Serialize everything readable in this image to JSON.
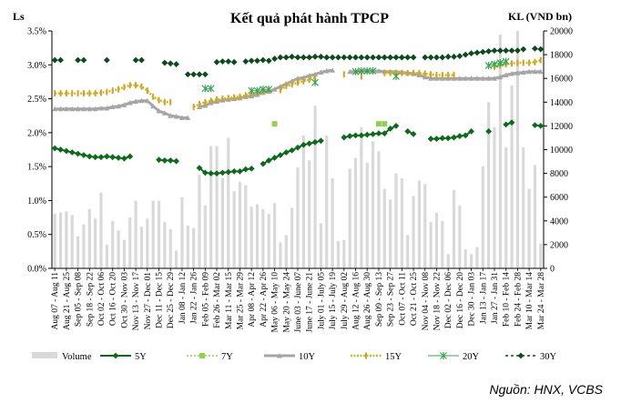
{
  "chart_data": {
    "type": "line",
    "title": "Kết quả phát hành TPCP",
    "ylabel_left": "Ls",
    "ylabel_right": "KL (VND bn)",
    "source": "Nguồn: HNX, VCBS",
    "ylim_left": [
      0,
      0.035
    ],
    "ylim_right": [
      0,
      20000
    ],
    "yticks_left": [
      "0.0%",
      "0.5%",
      "1.0%",
      "1.5%",
      "2.0%",
      "2.5%",
      "3.0%",
      "3.5%"
    ],
    "yticks_right": [
      "0",
      "2000",
      "4000",
      "6000",
      "8000",
      "10000",
      "12000",
      "14000",
      "16000",
      "18000",
      "20000"
    ],
    "x_labels": [
      "Aug 07 - Aug 11",
      "Aug 21 - Aug 25",
      "Sep 05 - Sep 08",
      "Sep 18 - Sep 22",
      "Oct 02 - Oct 06",
      "Oct 16 - Oct 20",
      "Oct 30 - Nov 03",
      "Nov 13 - Nov 17",
      "Nov 27 - Dec 01",
      "Dec 11 - Dec 15",
      "Dec 25 - Dec 29",
      "Jan 08 - Jan 12",
      "Jan 22 - Jan 26",
      "Feb 05 - Feb 09",
      "Feb 26 - Mar 02",
      "Mar 11 - Mar 15",
      "Mar 25 - Mar 29",
      "Apr 08 - Apr 12",
      "Apr 22 - Apr 26",
      "May 06 - May 10",
      "May 20 - May 24",
      "June 03 - June 07",
      "June 17 - June 21",
      "July 01 - July 05",
      "July 15 - July 19",
      "July 29 - Aug 02",
      "Aug 12 - Aug 16",
      "Aug 26 - Aug 30",
      "Sep 09 - Sep 13",
      "Sep 23 - Sep 27",
      "Oct 07 - Oct 11",
      "Oct 21 - Oct 25",
      "Nov 04 - Nov 08",
      "Nov 18 - Nov 22",
      "Dec 02 - Dec 06",
      "Dec 16 - Dec 20",
      "Dec 30 - Jan 03",
      "Jan 13 - Jan 17",
      "Jan 27 - Jan 31",
      "Feb 10 - Feb 14",
      "Feb 24 - Feb 28",
      "Mar 10 - Mar 14",
      "Mar 24 - Mar 28"
    ],
    "n_points": 85,
    "legend": [
      "Volume",
      "5Y",
      "7Y",
      "10Y",
      "15Y",
      "20Y",
      "30Y"
    ],
    "volume": [
      4600,
      4700,
      4800,
      4500,
      2700,
      3700,
      5000,
      4200,
      6400,
      2000,
      4000,
      3200,
      2400,
      4300,
      5700,
      3500,
      4200,
      5700,
      5700,
      3900,
      3300,
      1500,
      6000,
      3600,
      3400,
      7900,
      5300,
      10300,
      10300,
      7600,
      11000,
      6500,
      7300,
      7000,
      5200,
      5400,
      5000,
      4600,
      5500,
      2200,
      2800,
      5100,
      8500,
      11200,
      9100,
      13700,
      3800,
      11200,
      7600,
      2300,
      2400,
      8400,
      9300,
      11900,
      8900,
      10700,
      9900,
      6700,
      5800,
      8000,
      7600,
      2800,
      6100,
      7400,
      7100,
      3900,
      4700,
      4000,
      1200,
      6600,
      5300,
      1600,
      1200,
      1800,
      8600,
      14000,
      11900,
      19700,
      10200,
      15400,
      20000,
      10200,
      6700,
      8700,
      2100
    ],
    "series": [
      {
        "name": "5Y",
        "values": [
          0.0177,
          0.0175,
          0.0173,
          0.0171,
          0.0169,
          0.0167,
          0.0165,
          0.0164,
          0.0164,
          0.0165,
          0.0164,
          0.0163,
          0.0162,
          0.0165,
          null,
          null,
          null,
          null,
          0.016,
          0.0159,
          0.0159,
          0.0158,
          null,
          null,
          null,
          0.0148,
          0.0141,
          0.014,
          0.014,
          0.0141,
          0.0142,
          0.0143,
          0.0143,
          0.0146,
          0.0147,
          null,
          0.0154,
          0.0159,
          0.0163,
          0.0167,
          0.0171,
          0.0174,
          0.0178,
          0.0182,
          0.0184,
          0.0186,
          0.0188,
          null,
          null,
          null,
          0.0193,
          0.0195,
          0.0196,
          0.0196,
          0.0197,
          0.0198,
          0.0199,
          0.0199,
          0.0206,
          0.021,
          null,
          0.0202,
          0.0198,
          null,
          null,
          0.0191,
          0.0191,
          0.0192,
          0.0192,
          0.0193,
          0.0195,
          0.0196,
          0.0202,
          null,
          null,
          0.0202,
          null,
          null,
          0.0212,
          0.0215,
          null,
          null,
          null,
          0.0211,
          0.021
        ]
      },
      {
        "name": "7Y",
        "values": [
          null,
          null,
          null,
          null,
          null,
          null,
          null,
          null,
          null,
          null,
          null,
          null,
          null,
          null,
          null,
          null,
          null,
          null,
          null,
          null,
          null,
          null,
          null,
          null,
          null,
          null,
          null,
          null,
          null,
          null,
          null,
          null,
          null,
          null,
          null,
          null,
          null,
          null,
          0.0213,
          null,
          null,
          null,
          null,
          null,
          null,
          null,
          null,
          null,
          null,
          null,
          null,
          null,
          null,
          null,
          null,
          null,
          0.0213,
          0.0213,
          null,
          null,
          null,
          null,
          null,
          null,
          null,
          null,
          null,
          null,
          null,
          null,
          null,
          null,
          null,
          null,
          null,
          null,
          null,
          null,
          null,
          null,
          null,
          null,
          null,
          null,
          null
        ]
      },
      {
        "name": "10Y",
        "values": [
          0.0235,
          0.0235,
          0.0235,
          0.0235,
          0.0235,
          0.0235,
          0.0235,
          0.0235,
          0.0236,
          0.0236,
          0.0238,
          0.0239,
          0.0241,
          0.0244,
          0.0246,
          0.0247,
          0.0247,
          0.0239,
          0.0232,
          0.0229,
          0.0225,
          0.0224,
          0.0222,
          0.0222,
          null,
          0.0238,
          0.024,
          0.0244,
          0.0246,
          0.0248,
          0.0249,
          0.025,
          0.0251,
          0.0253,
          0.0254,
          0.0256,
          0.0259,
          0.0261,
          0.0264,
          0.0268,
          0.0272,
          0.0276,
          0.028,
          0.0281,
          0.0284,
          0.0286,
          0.0289,
          0.0291,
          0.0292,
          null,
          null,
          0.029,
          0.029,
          0.0291,
          0.0291,
          0.0291,
          0.0291,
          0.029,
          0.029,
          0.029,
          0.0289,
          0.0288,
          0.0287,
          0.0285,
          0.0282,
          0.028,
          0.028,
          0.028,
          0.028,
          0.028,
          0.028,
          0.028,
          0.028,
          0.028,
          0.028,
          0.028,
          0.028,
          0.0282,
          0.0285,
          0.0287,
          0.0288,
          0.0289,
          0.029,
          0.029,
          0.029
        ]
      },
      {
        "name": "15Y",
        "values": [
          0.0258,
          0.0258,
          0.0258,
          0.0258,
          0.0258,
          0.0258,
          0.0258,
          0.0258,
          0.0259,
          0.026,
          0.0262,
          0.0264,
          0.0267,
          0.027,
          0.027,
          0.0268,
          0.0262,
          0.0253,
          0.0248,
          0.0245,
          0.0245,
          null,
          null,
          null,
          0.0238,
          0.0242,
          0.0245,
          0.0247,
          0.0249,
          0.025,
          0.0251,
          0.0252,
          0.0253,
          0.0255,
          0.0257,
          0.0259,
          0.0261,
          0.0262,
          null,
          0.0263,
          0.0269,
          0.0271,
          0.0274,
          0.0276,
          0.0278,
          0.0281,
          null,
          null,
          null,
          null,
          0.0286,
          null,
          null,
          0.0283,
          null,
          null,
          null,
          0.0288,
          0.0288,
          0.0288,
          0.0288,
          0.0288,
          0.0288,
          0.0288,
          0.0287,
          0.0286,
          0.0285,
          0.0285,
          0.0285,
          0.0285,
          null,
          null,
          null,
          null,
          null,
          null,
          0.0297,
          0.0299,
          0.0301,
          0.0302,
          0.0303,
          0.0303,
          0.0303,
          0.0304,
          0.0307
        ]
      },
      {
        "name": "20Y",
        "values": [
          null,
          null,
          null,
          null,
          null,
          null,
          null,
          null,
          null,
          null,
          null,
          null,
          null,
          null,
          null,
          null,
          null,
          null,
          null,
          null,
          null,
          null,
          null,
          null,
          null,
          null,
          0.0265,
          0.0265,
          null,
          null,
          null,
          null,
          null,
          null,
          0.0262,
          0.0262,
          0.0264,
          0.0264,
          null,
          null,
          null,
          null,
          null,
          null,
          null,
          0.0274,
          null,
          null,
          null,
          null,
          null,
          null,
          0.029,
          0.0291,
          0.0291,
          0.0291,
          null,
          null,
          null,
          0.0283,
          null,
          null,
          null,
          null,
          null,
          null,
          null,
          null,
          null,
          null,
          null,
          null,
          null,
          null,
          null,
          0.0299,
          0.0301,
          0.0303,
          0.0305,
          null,
          null,
          null,
          null,
          null,
          null
        ]
      },
      {
        "name": "30Y",
        "values": [
          0.0307,
          0.0307,
          null,
          null,
          0.0307,
          0.0307,
          null,
          null,
          null,
          0.0307,
          null,
          null,
          null,
          null,
          0.0307,
          0.0307,
          null,
          null,
          null,
          0.0303,
          0.0302,
          0.0301,
          null,
          0.0286,
          0.0286,
          0.0286,
          0.0286,
          null,
          0.0304,
          0.0305,
          0.0305,
          0.0304,
          null,
          0.0305,
          0.0306,
          0.0306,
          0.0307,
          0.0306,
          0.0309,
          0.0311,
          0.0311,
          0.0312,
          0.0311,
          0.0311,
          0.0311,
          0.0312,
          0.0312,
          0.0311,
          0.0311,
          0.0311,
          0.0311,
          0.0311,
          0.0311,
          0.0311,
          0.0311,
          0.0311,
          0.0311,
          0.0311,
          0.0311,
          0.0311,
          0.0311,
          0.0311,
          0.0311,
          null,
          0.0311,
          0.0311,
          0.0311,
          0.0311,
          0.0312,
          0.0312,
          0.0313,
          0.0315,
          0.0317,
          0.0318,
          0.0319,
          0.032,
          0.0321,
          0.0321,
          0.0321,
          0.0321,
          0.0321,
          0.0323,
          null,
          0.0324,
          0.0323
        ]
      }
    ],
    "colors": {
      "volume": "#d9d9d9",
      "5Y": "#0b6b1a",
      "7Y": "#92d050",
      "10Y": "#a6a6a6",
      "15Y": "#9ccc2e",
      "20Y": "#3aa354",
      "30Y": "#0d4a1e"
    },
    "legend_position": "bottom",
    "grid": false
  }
}
